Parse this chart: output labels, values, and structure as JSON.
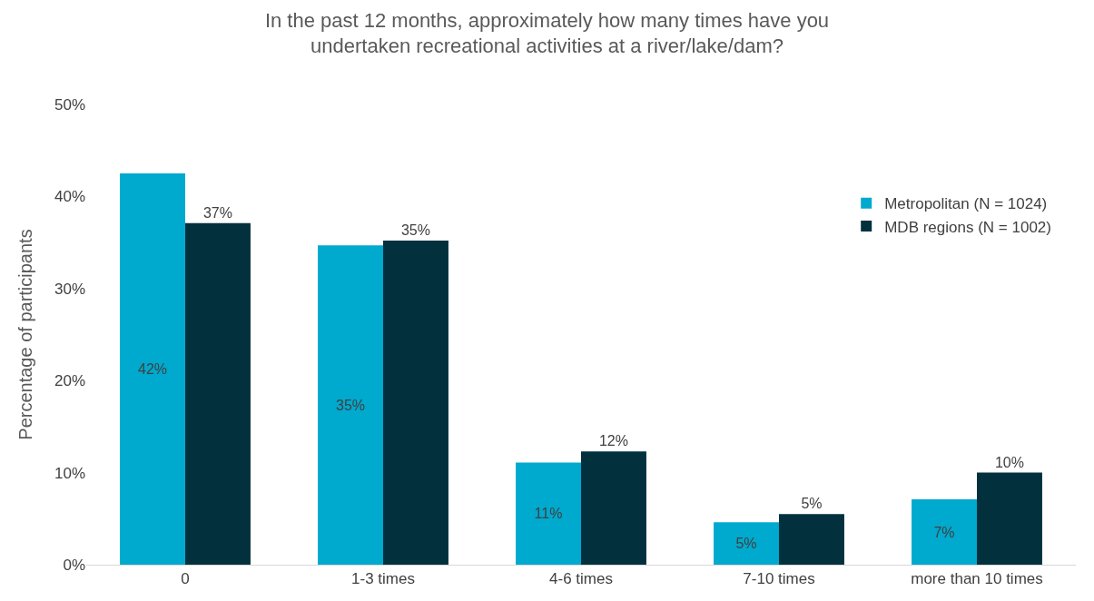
{
  "chart_data": {
    "type": "bar",
    "title": "In the past 12 months, approximately how many times have you\nundertaken recreational activities at a river/lake/dam?",
    "ylabel": "Percentage of participants",
    "categories": [
      "0",
      "1-3 times",
      "4-6 times",
      "7-10 times",
      "more than 10 times"
    ],
    "series": [
      {
        "name": "Metropolitan (N = 1024)",
        "color": "#00a9ce",
        "values": [
          42.5,
          34.7,
          11.1,
          4.6,
          7.1
        ],
        "value_labels": [
          "42%",
          "35%",
          "11%",
          "5%",
          "7%"
        ]
      },
      {
        "name": "MDB regions (N = 1002)",
        "color": "#02313d",
        "values": [
          37.1,
          35.2,
          12.3,
          5.5,
          10.0
        ],
        "value_labels": [
          "37%",
          "35%",
          "12%",
          "5%",
          "10%"
        ]
      }
    ],
    "ylim": [
      0,
      50
    ],
    "yticks": [
      {
        "value": 0,
        "label": "0%"
      },
      {
        "value": 10,
        "label": "10%"
      },
      {
        "value": 20,
        "label": "20%"
      },
      {
        "value": 30,
        "label": "30%"
      },
      {
        "value": 40,
        "label": "40%"
      },
      {
        "value": 50,
        "label": "50%"
      }
    ],
    "grid": false,
    "legend": "right"
  }
}
